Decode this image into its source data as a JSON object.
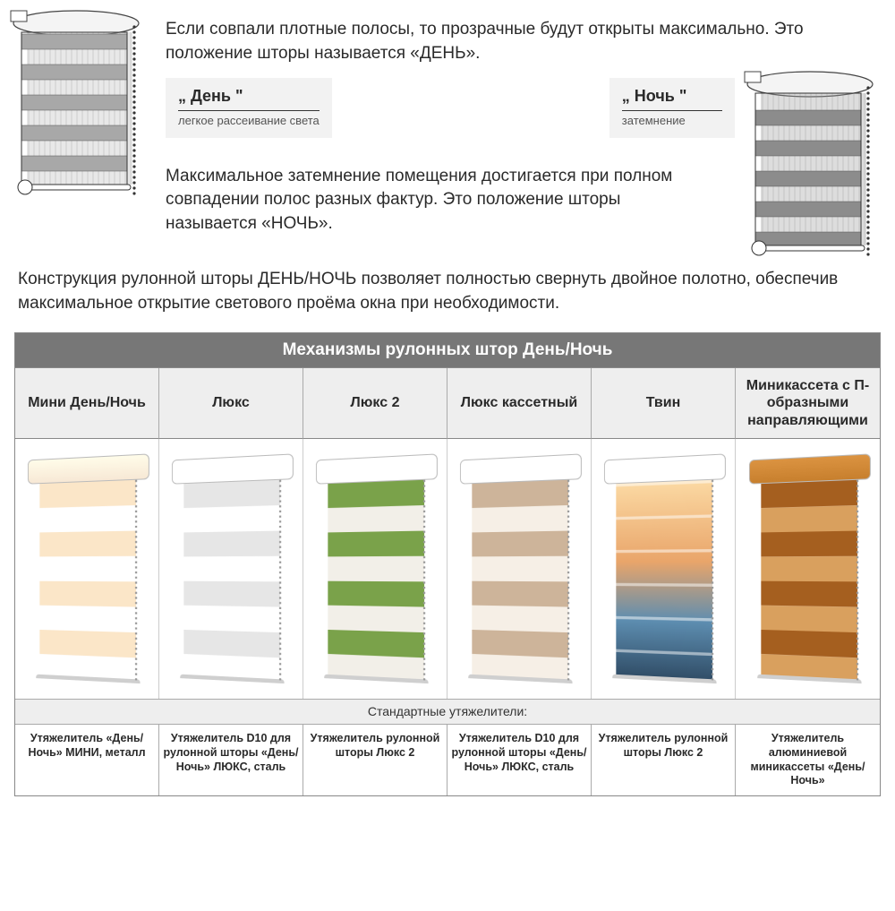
{
  "intro": {
    "paragraph_day": "Если совпали плотные полосы, то прозрачные будут открыты максимально.   Это положение шторы называется «ДЕНЬ».",
    "paragraph_night": "Максимальное затемнение помещения достигается при полном  совпадении полос разных фактур. Это положение шторы называется «НОЧЬ».",
    "paragraph_bottom": "Конструкция рулонной шторы ДЕНЬ/НОЧЬ  позволяет полностью  свернуть двойное полотно, обеспечив  максимальное  открытие светового проёма окна при необходимости."
  },
  "labels": {
    "day": {
      "title": "„ День \"",
      "sub": "легкое рассеивание света"
    },
    "night": {
      "title": "„ Ночь \"",
      "sub": "затемнение"
    }
  },
  "colors": {
    "table_header_bg": "#777777",
    "table_subhead_bg": "#eeeeee",
    "border": "#aaaaaa",
    "body_text": "#2a2a2a",
    "label_box_bg": "#f2f2f2"
  },
  "table": {
    "title": "Механизмы рулонных штор День/Ночь",
    "columns": [
      "Мини День/Ночь",
      "Люкс",
      "Люкс 2",
      "Люкс кассетный",
      "Твин",
      "Миникассета с П-образными направляющими"
    ],
    "products": [
      {
        "cassette_color": "#f7e8d5",
        "stripe_a": "#fbe6c8",
        "stripe_b": "#ffffff"
      },
      {
        "cassette_color": "#ffffff",
        "stripe_a": "#e6e6e6",
        "stripe_b": "#ffffff"
      },
      {
        "cassette_color": "#ffffff",
        "stripe_a": "#7aa24a",
        "stripe_b": "#f2efe8"
      },
      {
        "cassette_color": "#ffffff",
        "stripe_a": "#cdb49a",
        "stripe_b": "#f6efe6"
      },
      {
        "cassette_color": "#ffffff",
        "stripe_a": "#b9876b",
        "stripe_b": "#6fa8c9",
        "photo": true
      },
      {
        "cassette_color": "#c77f2d",
        "stripe_a": "#a55f1f",
        "stripe_b": "#d9a05e"
      }
    ],
    "subheader": "Стандартные утяжелители:",
    "footers": [
      "Утяжелитель «День/Ночь» МИНИ, металл",
      "Утяжелитель D10 для рулонной шторы «День/Ночь»  ЛЮКС, сталь",
      "Утяжелитель рулонной шторы Люкс 2",
      "Утяжелитель D10 для рулонной шторы «День/Ночь»  ЛЮКС, сталь",
      "Утяжелитель рулонной шторы Люкс 2",
      "Утяжелитель алюминиевой миникассеты «День/Ночь»"
    ]
  },
  "diagrams": {
    "left": {
      "mode": "day",
      "sheer_color": "#d8d8d8",
      "opaque_color": "#a8a8a8",
      "mesh_color": "#bdbdbd"
    },
    "right": {
      "mode": "night",
      "sheer_color": "#d8d8d8",
      "opaque_color": "#8c8c8c",
      "mesh_color": "#9e9e9e"
    }
  }
}
